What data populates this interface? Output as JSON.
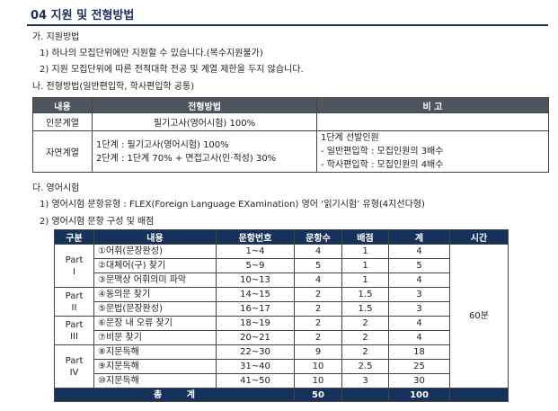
{
  "header": {
    "title": "04 지원 및 전형방법"
  },
  "section_a": {
    "heading": "가. 지원방법",
    "items": [
      "1) 하나의 모집단위에만 지원할 수 있습니다.(복수지원불가)",
      "2) 지원 모집단위에 따른 전적대학 전공 및 계열 제한을 두지 않습니다."
    ]
  },
  "section_b": {
    "heading": "나. 전형방법(일반편입학, 학사편입학 공통)",
    "table": {
      "headers": [
        "내용",
        "전형방법",
        "비 고"
      ],
      "rows": [
        {
          "label": "인문계열",
          "method": [
            "필기고사(영어시험) 100%"
          ],
          "note": []
        },
        {
          "label": "자연계열",
          "method": [
            "1단계 : 필기고사(영어시험) 100%",
            "2단계 : 1단계 70% + 면접고사(인·적성) 30%"
          ],
          "note": [
            "1단계 선발인원",
            "- 일반편입학 : 모집인원의 3배수",
            "- 학사편입학 : 모집인원의 4배수"
          ]
        }
      ]
    }
  },
  "section_c": {
    "heading": "다. 영어시험",
    "items": [
      "1) 영어시험 문항유형 : FLEX(Foreign Language EXamination) 영어 ‘읽기시험’ 유형(4지선다형)",
      "2) 영어시험 문항 구성 및 배점"
    ],
    "table": {
      "headers": [
        "구분",
        "내용",
        "문항번호",
        "문항수",
        "배점",
        "계",
        "시간"
      ],
      "groups": [
        {
          "part": "Part",
          "numeral": "I",
          "rows": [
            [
              "①어휘(문장완성)",
              "1~4",
              4,
              1,
              4
            ],
            [
              "②대체어(구) 찾기",
              "5~9",
              5,
              1,
              5
            ],
            [
              "③문맥상 어휘의미 파악",
              "10~13",
              4,
              1,
              4
            ]
          ]
        },
        {
          "part": "Part",
          "numeral": "II",
          "rows": [
            [
              "④동의문 찾기",
              "14~15",
              2,
              1.5,
              3
            ],
            [
              "⑤문법(문장완성)",
              "16~17",
              2,
              1.5,
              3
            ]
          ]
        },
        {
          "part": "Part",
          "numeral": "III",
          "rows": [
            [
              "⑥문장 내 오류 찾기",
              "18~19",
              2,
              2,
              4
            ],
            [
              "⑦비문 찾기",
              "20~21",
              2,
              2,
              4
            ]
          ]
        },
        {
          "part": "Part",
          "numeral": "IV",
          "rows": [
            [
              "⑧지문독해",
              "22~30",
              9,
              2,
              18
            ],
            [
              "⑨지문독해",
              "31~40",
              10,
              2.5,
              25
            ],
            [
              "⑩지문독해",
              "41~50",
              10,
              3,
              30
            ]
          ]
        }
      ],
      "time": "60분",
      "total": {
        "label": "총 계",
        "count": 50,
        "sum": 100
      }
    }
  }
}
